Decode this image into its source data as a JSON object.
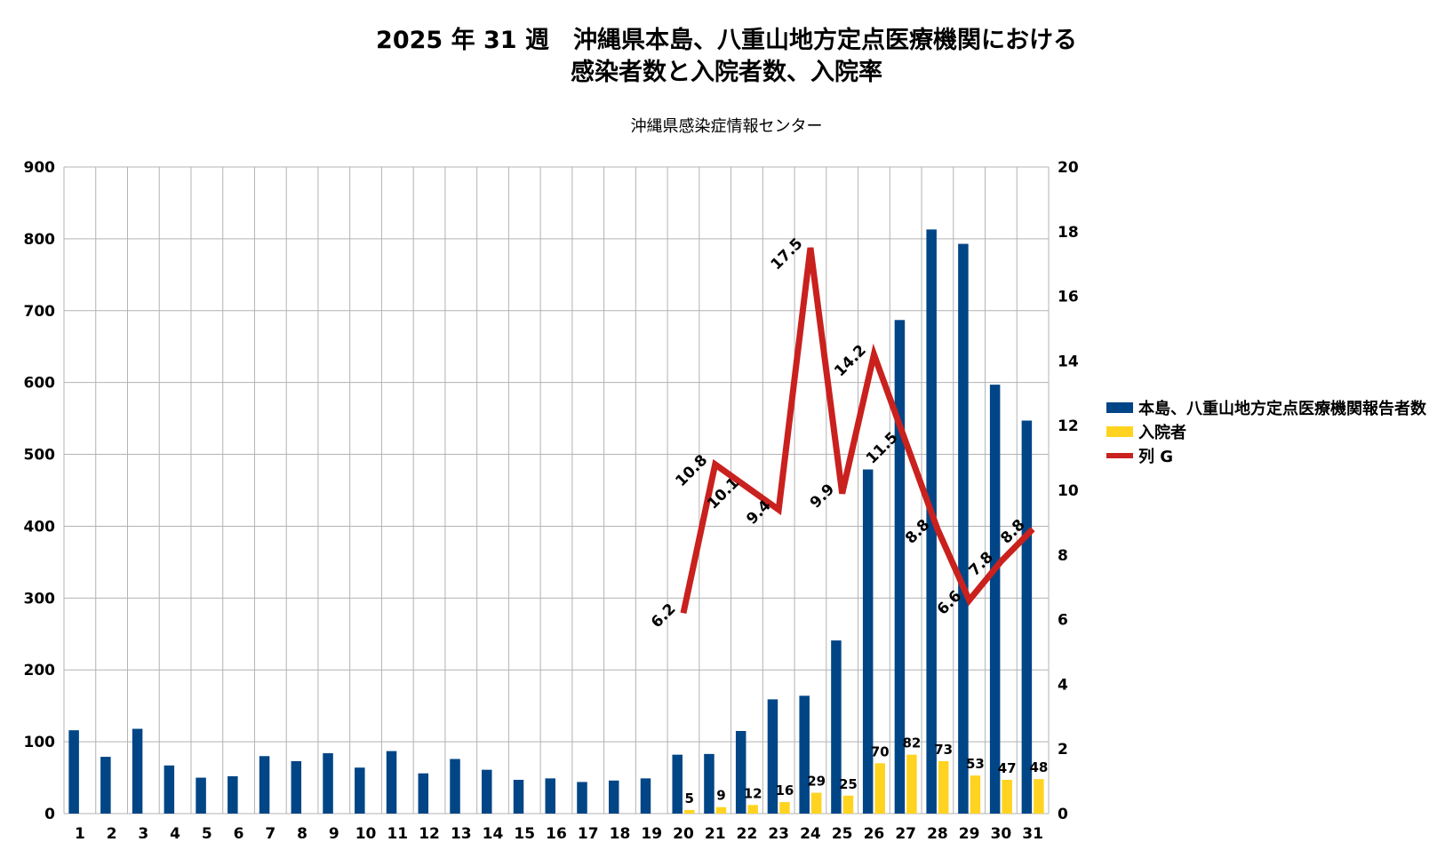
{
  "title_line1": "2025 年 31 週　沖縄県本島、八重山地方定点医療機関における",
  "title_line2": "感染者数と入院者数、入院率",
  "subtitle": "沖縄県感染症情報センター",
  "chart_data": {
    "type": "bar",
    "categories": [
      "1",
      "2",
      "3",
      "4",
      "5",
      "6",
      "7",
      "8",
      "9",
      "10",
      "11",
      "12",
      "13",
      "14",
      "15",
      "16",
      "17",
      "18",
      "19",
      "20",
      "21",
      "22",
      "23",
      "24",
      "25",
      "26",
      "27",
      "28",
      "29",
      "30",
      "31"
    ],
    "y_left": {
      "min": 0,
      "max": 900,
      "ticks": [
        0,
        100,
        200,
        300,
        400,
        500,
        600,
        700,
        800,
        900
      ]
    },
    "y_right": {
      "min": 0,
      "max": 20,
      "ticks": [
        0,
        2,
        4,
        6,
        8,
        10,
        12,
        14,
        16,
        18,
        20
      ]
    },
    "grid": true,
    "legend_position": "right",
    "series": [
      {
        "name": "本島、八重山地方定点医療機関報告者数",
        "type": "bar",
        "axis": "left",
        "color": "#004586",
        "values": [
          116,
          79,
          118,
          67,
          50,
          52,
          80,
          73,
          84,
          64,
          87,
          56,
          76,
          61,
          47,
          49,
          44,
          46,
          49,
          82,
          83,
          115,
          159,
          164,
          241,
          479,
          687,
          813,
          793,
          597,
          547
        ],
        "show_labels": false
      },
      {
        "name": "入院者",
        "type": "bar",
        "axis": "left",
        "color": "#ffd320",
        "values": [
          null,
          null,
          null,
          null,
          null,
          null,
          null,
          null,
          null,
          null,
          null,
          null,
          null,
          null,
          null,
          null,
          null,
          null,
          null,
          5,
          9,
          12,
          16,
          29,
          25,
          70,
          82,
          73,
          53,
          47,
          48
        ],
        "show_labels": true
      },
      {
        "name": "列 G",
        "type": "line",
        "axis": "right",
        "color": "#c9211e",
        "values": [
          null,
          null,
          null,
          null,
          null,
          null,
          null,
          null,
          null,
          null,
          null,
          null,
          null,
          null,
          null,
          null,
          null,
          null,
          null,
          6.2,
          10.8,
          10.1,
          9.4,
          17.5,
          9.9,
          14.2,
          11.5,
          8.8,
          6.6,
          7.8,
          8.8
        ],
        "show_labels": true
      }
    ]
  }
}
